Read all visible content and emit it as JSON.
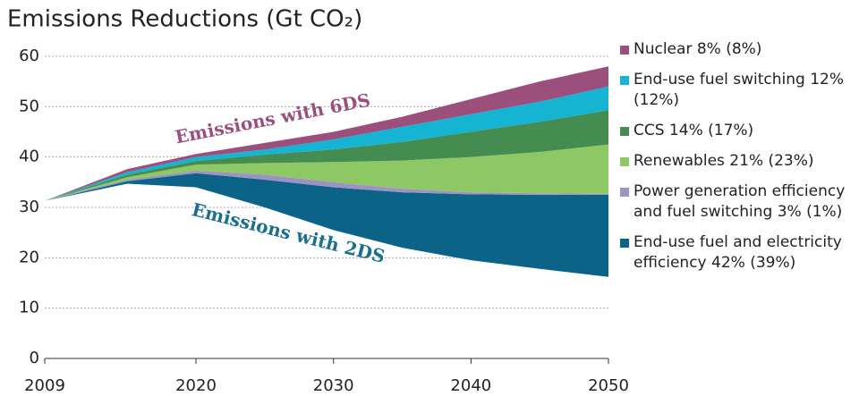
{
  "chart_data": {
    "type": "stacked_area",
    "title": "Emissions Reductions (Gt CO₂)",
    "x": [
      2009,
      2015,
      2020,
      2025,
      2030,
      2035,
      2040,
      2045,
      2050
    ],
    "xlim": [
      2009,
      2050
    ],
    "xticks": [
      2009,
      2020,
      2030,
      2040,
      2050
    ],
    "ylim": [
      0,
      60
    ],
    "yticks": [
      0,
      10,
      20,
      30,
      40,
      50,
      60
    ],
    "grid": true,
    "baseline": {
      "name": "Emissions with 2DS",
      "color": "#1a6e8e",
      "values": [
        31.3,
        34.7,
        34,
        30,
        25.5,
        22,
        19.5,
        17.8,
        16.2
      ]
    },
    "top_annotation": {
      "text": "Emissions with 6DS",
      "color": "#9b4f7d"
    },
    "series": [
      {
        "name": "End-use fuel and electricity efficiency 42% (39%)",
        "color": "#0b6488",
        "values": [
          0,
          0.5,
          2.8,
          5.5,
          8.5,
          11,
          13.1,
          14.7,
          16.3
        ]
      },
      {
        "name": "Power generation efficiency and fuel switching 3% (1%)",
        "color": "#9d93c2",
        "values": [
          0,
          0.3,
          0.5,
          1,
          1,
          0.7,
          0.4,
          0.3,
          0.2
        ]
      },
      {
        "name": "Renewables 21% (23%)",
        "color": "#8dc865",
        "values": [
          0,
          0.5,
          1.2,
          2.3,
          4,
          5.6,
          7,
          8.2,
          9.8
        ]
      },
      {
        "name": "CCS 14% (17%)",
        "color": "#448c4f",
        "values": [
          0,
          0.5,
          0.7,
          1.7,
          2.5,
          3.7,
          5,
          6,
          6.8
        ]
      },
      {
        "name": "End-use fuel switching 12% (12%)",
        "color": "#14b4d2",
        "values": [
          0,
          0.5,
          0.8,
          1,
          2,
          3,
          3.5,
          4,
          4.7
        ]
      },
      {
        "name": "Nuclear 8% (8%)",
        "color": "#9b4f7d",
        "values": [
          0,
          0.6,
          0.6,
          1.3,
          1.5,
          2,
          3,
          4,
          4
        ]
      }
    ]
  }
}
